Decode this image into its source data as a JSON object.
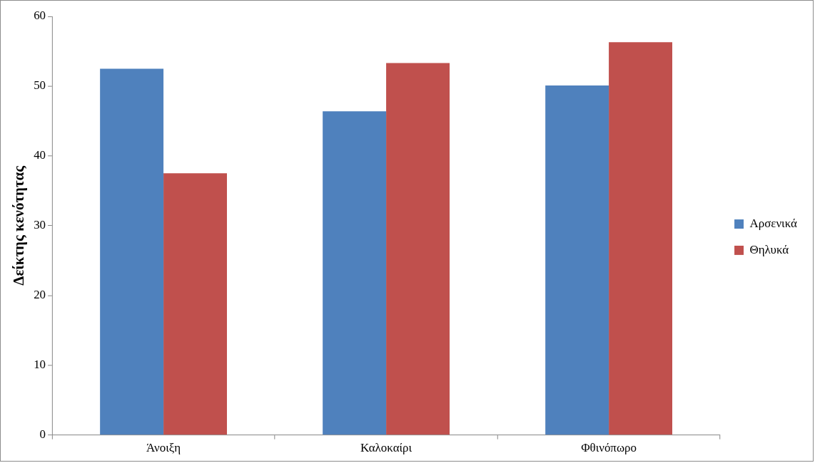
{
  "chart_data": {
    "type": "bar",
    "ylabel": "Δείκτης κενότητας",
    "categories": [
      "Άνοιξη",
      "Καλοκαίρι",
      "Φθινόπωρο"
    ],
    "series": [
      {
        "name": "Αρσενικά",
        "color": "#4f81bd",
        "values": [
          52.5,
          46.4,
          50.1
        ]
      },
      {
        "name": "Θηλυκά",
        "color": "#c0504d",
        "values": [
          37.5,
          53.3,
          56.3
        ]
      }
    ],
    "ylim": [
      0,
      60
    ],
    "yticks": [
      0,
      10,
      20,
      30,
      40,
      50,
      60
    ],
    "grid": false,
    "legend": "right"
  }
}
